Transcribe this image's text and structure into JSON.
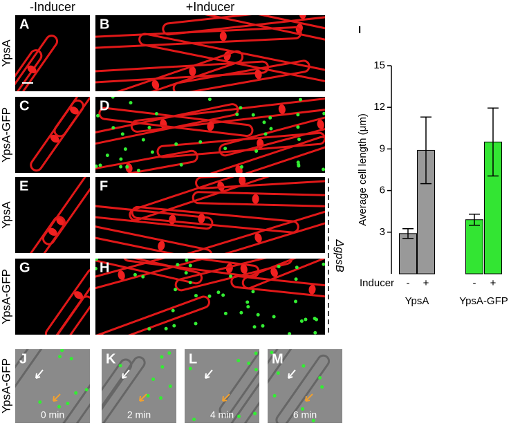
{
  "column_headers": [
    "-Inducer",
    "+Inducer"
  ],
  "row_labels": [
    "YpsA",
    "YpsA-GFP",
    "YpsA",
    "YpsA-GFP"
  ],
  "panel_labels": [
    "A",
    "B",
    "C",
    "D",
    "E",
    "F",
    "G",
    "H"
  ],
  "strain_label": "ΔgpsB",
  "timelapse": {
    "row_label": "YpsA-GFP",
    "panels": [
      {
        "label": "J",
        "time": "0 min"
      },
      {
        "label": "K",
        "time": "2 min"
      },
      {
        "label": "L",
        "time": "4 min"
      },
      {
        "label": "M",
        "time": "6 min"
      }
    ]
  },
  "chart_data": {
    "type": "bar",
    "panel_label": "I",
    "y_label": "Average cell length (μm)",
    "x_row_label": "Inducer",
    "categories": [
      "-",
      "+",
      "-",
      "+"
    ],
    "groups": [
      "YpsA",
      "YpsA-GFP"
    ],
    "values": [
      2.9,
      8.9,
      3.9,
      9.5
    ],
    "errors": [
      0.35,
      2.4,
      0.4,
      2.45
    ],
    "colors": [
      "#999999",
      "#999999",
      "#33e533",
      "#33e533"
    ],
    "ylim": [
      0,
      15
    ],
    "yticks": [
      3,
      6,
      9,
      12,
      15
    ]
  }
}
